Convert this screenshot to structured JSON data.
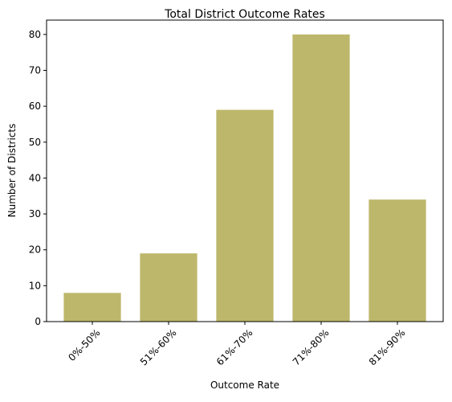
{
  "chart_data": {
    "type": "bar",
    "title": "Total District Outcome Rates",
    "xlabel": "Outcome Rate",
    "ylabel": "Number of Districts",
    "categories": [
      "0%-50%",
      "51%-60%",
      "61%-70%",
      "71%-80%",
      "81%-90%"
    ],
    "values": [
      8,
      19,
      59,
      80,
      34
    ],
    "ylim": [
      0,
      84
    ],
    "yticks": [
      0,
      10,
      20,
      30,
      40,
      50,
      60,
      70,
      80
    ],
    "bar_color": "#bdb76b",
    "grid": false,
    "legend": "none"
  }
}
